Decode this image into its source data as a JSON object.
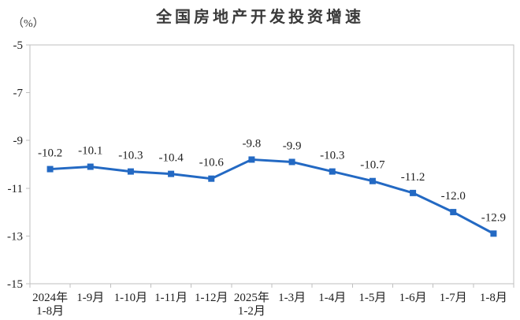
{
  "chart_data": {
    "type": "line",
    "title": "全国房地产开发投资增速",
    "ylabel": "（%）",
    "xlabel": "",
    "categories": [
      "2024年\n1-8月",
      "1-9月",
      "1-10月",
      "1-11月",
      "1-12月",
      "2025年\n1-2月",
      "1-3月",
      "1-4月",
      "1-5月",
      "1-6月",
      "1-7月",
      "1-8月"
    ],
    "values": [
      -10.2,
      -10.1,
      -10.3,
      -10.4,
      -10.6,
      -9.8,
      -9.9,
      -10.3,
      -10.7,
      -11.2,
      -12.0,
      -12.9
    ],
    "data_labels": [
      "-10.2",
      "-10.1",
      "-10.3",
      "-10.4",
      "-10.6",
      "-9.8",
      "-9.9",
      "-10.3",
      "-10.7",
      "-11.2",
      "-12.0",
      "-12.9"
    ],
    "ylim": [
      -15,
      -5
    ],
    "y_ticks": [
      -5,
      -7,
      -9,
      -11,
      -13,
      -15
    ],
    "y_tick_labels": [
      "-5",
      "-7",
      "-9",
      "-11",
      "-13",
      "-15"
    ],
    "grid": false,
    "legend": "none",
    "marker": "square",
    "colors": {
      "line": "#2369C3",
      "marker": "#2369C3",
      "axis": "#BFBFBF",
      "text": "#1F1F1F",
      "title": "#3A3A3A"
    }
  }
}
